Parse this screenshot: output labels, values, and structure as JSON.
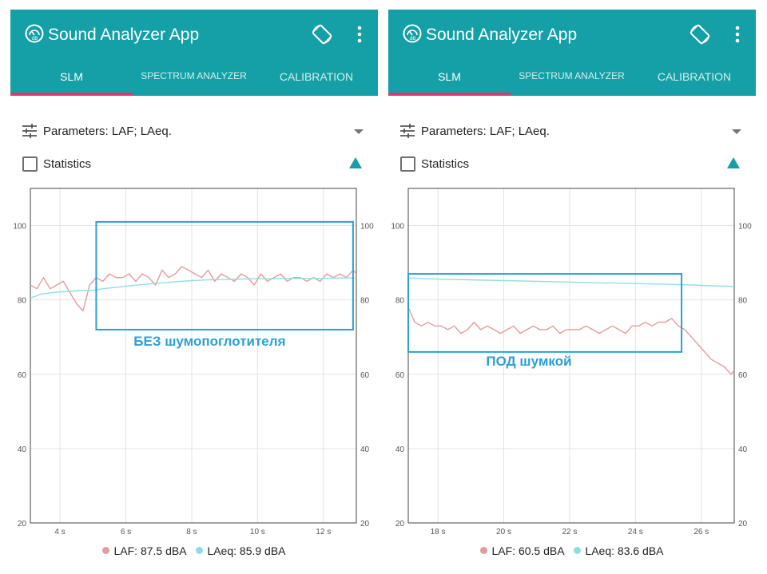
{
  "panels": [
    {
      "app_title": "Sound Analyzer App",
      "tabs": [
        {
          "label": "SLM",
          "active": true
        },
        {
          "label": "SPECTRUM ANALYZER",
          "active": false
        },
        {
          "label": "CALIBRATION",
          "active": false
        }
      ],
      "parameters_label": "Parameters: LAF; LAeq.",
      "statistics_label": "Statistics",
      "statistics_checked": false,
      "annotation": "БЕЗ шумопоглотителя",
      "legend": [
        {
          "label": "LAF: 87.5 dBA",
          "color": "#e89a9a"
        },
        {
          "label": "LAeq: 85.9 dBA",
          "color": "#8fdde3"
        }
      ]
    },
    {
      "app_title": "Sound Analyzer App",
      "tabs": [
        {
          "label": "SLM",
          "active": true
        },
        {
          "label": "SPECTRUM ANALYZER",
          "active": false
        },
        {
          "label": "CALIBRATION",
          "active": false
        }
      ],
      "parameters_label": "Parameters: LAF; LAeq.",
      "statistics_label": "Statistics",
      "statistics_checked": false,
      "annotation": "ПОД шумкой",
      "legend": [
        {
          "label": "LAF: 60.5 dBA",
          "color": "#e89a9a"
        },
        {
          "label": "LAeq: 83.6 dBA",
          "color": "#8fdde3"
        }
      ]
    }
  ],
  "colors": {
    "appbar": "#14a0a6",
    "tab_indicator": "#e53370",
    "laf_line": "#e89a9a",
    "laeq_line": "#8fdde3",
    "highlight_box": "#2a9fd8",
    "annotation_text": "#2a9fd8"
  },
  "chart_data": [
    {
      "type": "line",
      "x_unit": "s",
      "x_ticks": [
        4,
        6,
        8,
        10,
        12
      ],
      "x_tick_labels": [
        "4 s",
        "6 s",
        "8 s",
        "10 s",
        "12 s"
      ],
      "xlim": [
        3.1,
        13.0
      ],
      "y_ticks": [
        20,
        40,
        60,
        80,
        100
      ],
      "ylim": [
        20,
        110
      ],
      "series": [
        {
          "name": "LAF",
          "color": "#e89a9a",
          "x": [
            3.1,
            3.3,
            3.5,
            3.7,
            3.9,
            4.1,
            4.3,
            4.5,
            4.7,
            4.9,
            5.0,
            5.1,
            5.3,
            5.5,
            5.7,
            5.9,
            6.1,
            6.3,
            6.5,
            6.7,
            6.9,
            7.1,
            7.3,
            7.5,
            7.7,
            7.9,
            8.1,
            8.3,
            8.5,
            8.7,
            8.9,
            9.1,
            9.3,
            9.5,
            9.7,
            9.9,
            10.1,
            10.3,
            10.5,
            10.7,
            10.9,
            11.1,
            11.3,
            11.5,
            11.7,
            11.9,
            12.1,
            12.3,
            12.5,
            12.7,
            12.9,
            13.0
          ],
          "y": [
            84,
            83,
            86,
            83,
            84,
            85,
            82,
            79,
            77,
            84,
            85,
            86,
            85,
            87,
            86,
            86,
            87,
            85,
            87,
            86,
            84,
            88,
            86,
            87,
            89,
            88,
            87,
            86,
            88,
            85,
            87,
            86,
            85,
            87,
            86,
            84,
            87,
            85,
            86,
            87,
            85,
            86,
            86,
            85,
            86,
            85,
            87,
            86,
            87,
            86,
            88,
            87
          ]
        },
        {
          "name": "LAeq",
          "color": "#8fdde3",
          "x": [
            3.1,
            3.4,
            3.8,
            4.2,
            4.6,
            5.0,
            5.3,
            5.6,
            6.0,
            6.5,
            7.0,
            7.5,
            8.0,
            8.5,
            9.0,
            9.5,
            10.0,
            10.5,
            11.0,
            11.5,
            12.0,
            12.5,
            13.0
          ],
          "y": [
            80.5,
            81.5,
            82,
            82.3,
            82.5,
            82.6,
            83.0,
            83.3,
            83.7,
            84.1,
            84.5,
            84.9,
            85.2,
            85.4,
            85.5,
            85.6,
            85.7,
            85.7,
            85.8,
            85.8,
            85.8,
            85.9,
            85.9
          ]
        }
      ],
      "highlight_box": {
        "x": [
          5.1,
          12.9
        ],
        "y": [
          72,
          101
        ]
      }
    },
    {
      "type": "line",
      "x_unit": "s",
      "x_ticks": [
        18,
        20,
        22,
        24,
        26
      ],
      "x_tick_labels": [
        "18 s",
        "20 s",
        "22 s",
        "24 s",
        "26 s"
      ],
      "xlim": [
        17.1,
        27.0
      ],
      "y_ticks": [
        20,
        40,
        60,
        80,
        100
      ],
      "ylim": [
        20,
        110
      ],
      "series": [
        {
          "name": "LAF",
          "color": "#e89a9a",
          "x": [
            17.1,
            17.3,
            17.5,
            17.7,
            17.9,
            18.1,
            18.3,
            18.5,
            18.7,
            18.9,
            19.1,
            19.3,
            19.5,
            19.7,
            19.9,
            20.1,
            20.3,
            20.5,
            20.7,
            20.9,
            21.1,
            21.3,
            21.5,
            21.7,
            21.9,
            22.1,
            22.3,
            22.5,
            22.7,
            22.9,
            23.1,
            23.3,
            23.5,
            23.7,
            23.9,
            24.1,
            24.3,
            24.5,
            24.7,
            24.9,
            25.1,
            25.3,
            25.5,
            25.7,
            25.9,
            26.1,
            26.3,
            26.5,
            26.7,
            26.9,
            27.0
          ],
          "y": [
            78,
            74,
            73,
            74,
            73,
            73,
            72,
            73,
            71,
            72,
            74,
            72,
            73,
            72,
            71,
            72,
            73,
            71,
            72,
            73,
            72,
            72,
            73,
            71,
            72,
            72,
            72,
            73,
            72,
            71,
            72,
            73,
            72,
            71,
            73,
            73,
            74,
            73,
            74,
            74,
            75,
            73,
            72,
            70,
            68,
            66,
            64,
            63,
            62,
            60,
            61
          ]
        },
        {
          "name": "LAeq",
          "color": "#8fdde3",
          "x": [
            17.1,
            18,
            19,
            20,
            21,
            22,
            23,
            24,
            25,
            26,
            27.0
          ],
          "y": [
            85.9,
            85.6,
            85.4,
            85.2,
            85.0,
            84.8,
            84.6,
            84.4,
            84.2,
            83.9,
            83.6
          ]
        }
      ],
      "highlight_box": {
        "x": [
          17.1,
          25.4
        ],
        "y": [
          66,
          87
        ]
      }
    }
  ]
}
